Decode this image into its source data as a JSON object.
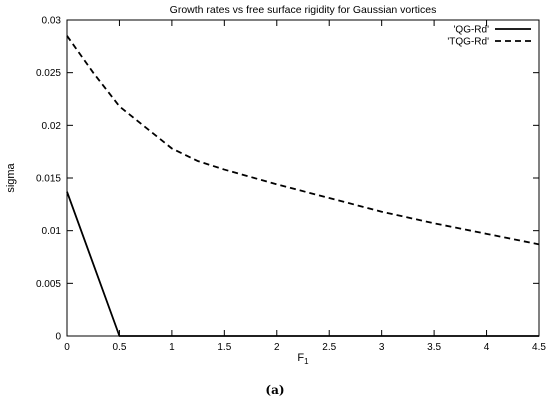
{
  "caption": "(a)",
  "chart_data": {
    "type": "line",
    "title": "Growth rates vs free surface rigidity for Gaussian vortices",
    "xlabel_main": "F",
    "xlabel_sub": "1",
    "ylabel": "sigma",
    "xlim": [
      0,
      4.5
    ],
    "ylim": [
      0,
      0.03
    ],
    "xticks": [
      0,
      0.5,
      1,
      1.5,
      2,
      2.5,
      3,
      3.5,
      4,
      4.5
    ],
    "xtick_labels": [
      "0",
      "0.5",
      "1",
      "1.5",
      "2",
      "2.5",
      "3",
      "3.5",
      "4",
      "4.5"
    ],
    "yticks": [
      0,
      0.005,
      0.01,
      0.015,
      0.02,
      0.025,
      0.03
    ],
    "ytick_labels": [
      "0",
      "0.005",
      "0.01",
      "0.015",
      "0.02",
      "0.025",
      "0.03"
    ],
    "grid": false,
    "legend_position": "top-right",
    "series": [
      {
        "name": "'QG-Rd'",
        "style": "solid",
        "color": "#000000",
        "x": [
          0,
          0.5,
          4.5
        ],
        "y": [
          0.0137,
          0,
          0
        ]
      },
      {
        "name": "'TQG-Rd'",
        "style": "dashed",
        "color": "#000000",
        "x": [
          0,
          0.25,
          0.5,
          0.75,
          1,
          1.25,
          1.5,
          2,
          2.5,
          3,
          3.5,
          4,
          4.5
        ],
        "y": [
          0.0285,
          0.025,
          0.0218,
          0.0198,
          0.0178,
          0.0166,
          0.0158,
          0.0144,
          0.0131,
          0.0118,
          0.0107,
          0.0097,
          0.0087
        ]
      }
    ]
  }
}
